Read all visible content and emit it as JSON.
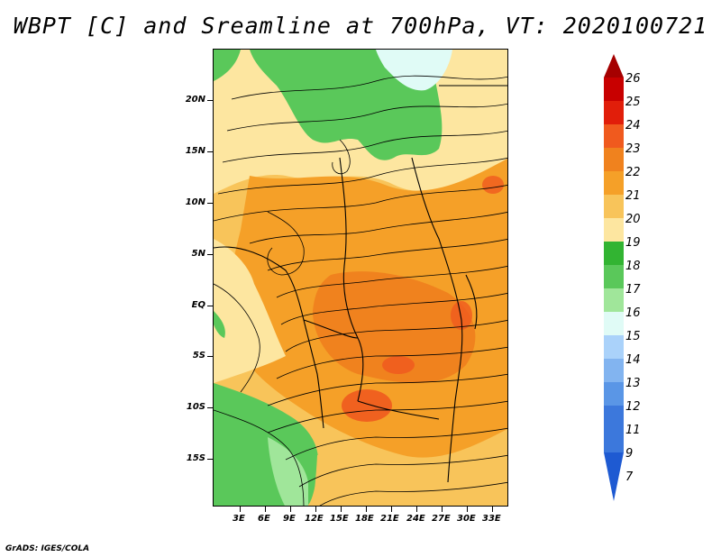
{
  "title": "WBPT [C] and Sreamline at 700hPa, VT: 2020100721",
  "footer": "GrADS: IGES/COLA",
  "lat_labels": [
    "20N",
    "15N",
    "10N",
    "5N",
    "EQ",
    "5S",
    "10S",
    "15S"
  ],
  "lon_labels": [
    "3E",
    "6E",
    "9E",
    "12E",
    "15E",
    "18E",
    "21E",
    "24E",
    "27E",
    "30E",
    "33E"
  ],
  "colorbar": {
    "levels": [
      "26",
      "25",
      "24",
      "23",
      "22",
      "21",
      "20",
      "19",
      "18",
      "17",
      "16",
      "15",
      "14",
      "13",
      "12",
      "11",
      "9",
      "7"
    ],
    "colors": [
      "#a50000",
      "#c80000",
      "#e11e0a",
      "#f05a1e",
      "#f0821e",
      "#f5a028",
      "#f8c45a",
      "#fde6a0",
      "#32b432",
      "#5ac85a",
      "#a0e69a",
      "#e0fbf6",
      "#aad2fa",
      "#82b4f0",
      "#5a96e6",
      "#3c78dc",
      "#1e5ad2"
    ]
  },
  "map": {
    "palette": {
      "green": "#5ac85a",
      "light_green": "#a0e69a",
      "cyan": "#e0fbf6",
      "yellow": "#fde6a0",
      "light_orange": "#f8c45a",
      "orange": "#f5a028",
      "dark_orange": "#f0821e",
      "red": "#f05a1e"
    }
  }
}
